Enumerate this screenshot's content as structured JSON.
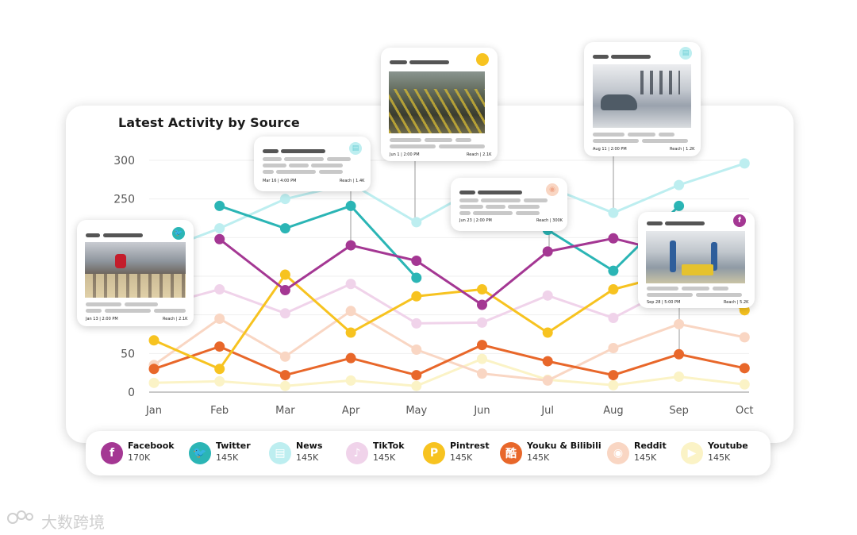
{
  "title": "Latest Activity by Source",
  "chart_data": {
    "type": "line",
    "title": "Latest Activity by Source",
    "categories": [
      "Jan",
      "Feb",
      "Mar",
      "Apr",
      "May",
      "Jun",
      "Jul",
      "Aug",
      "Sep",
      "Oct"
    ],
    "yticks": [
      0,
      50,
      250,
      300
    ],
    "ylim": [
      0,
      300
    ],
    "grid": true,
    "series": [
      {
        "name": "Facebook",
        "color": "#a43793",
        "values": [
          null,
          198,
          132,
          190,
          170,
          113,
          182,
          199,
          178,
          null
        ]
      },
      {
        "name": "Twitter",
        "color": "#2bb5b5",
        "values": [
          null,
          241,
          212,
          241,
          148,
          null,
          210,
          157,
          241,
          null
        ]
      },
      {
        "name": "News",
        "color": "#bdeef0",
        "values": [
          180,
          212,
          250,
          270,
          220,
          267,
          266,
          232,
          268,
          296
        ]
      },
      {
        "name": "TikTok",
        "color": "#f0d3ea",
        "values": [
          110,
          133,
          102,
          140,
          89,
          90,
          125,
          96,
          140,
          null
        ]
      },
      {
        "name": "Pintrest",
        "color": "#f7c320",
        "values": [
          67,
          30,
          152,
          77,
          124,
          133,
          77,
          133,
          155,
          106
        ]
      },
      {
        "name": "Youku & Bilibili",
        "color": "#e8672a",
        "values": [
          30,
          59,
          22,
          44,
          22,
          61,
          40,
          22,
          49,
          31
        ]
      },
      {
        "name": "Reddit",
        "color": "#f9d6c3",
        "values": [
          35,
          95,
          46,
          105,
          55,
          24,
          15,
          57,
          88,
          71
        ]
      },
      {
        "name": "Youtube",
        "color": "#fbf3c6",
        "values": [
          12,
          14,
          8,
          15,
          8,
          43,
          16,
          9,
          20,
          10
        ]
      }
    ]
  },
  "legend": [
    {
      "name": "Facebook",
      "value": "170K",
      "icon": "f",
      "color": "#a43793",
      "icon_name": "facebook-icon"
    },
    {
      "name": "Twitter",
      "value": "145K",
      "icon": "🐦",
      "color": "#2bb5b5",
      "icon_name": "twitter-icon"
    },
    {
      "name": "News",
      "value": "145K",
      "icon": "▤",
      "color": "#bdeef0",
      "icon_name": "news-icon"
    },
    {
      "name": "TikTok",
      "value": "145K",
      "icon": "♪",
      "color": "#f0d3ea",
      "icon_name": "tiktok-icon"
    },
    {
      "name": "Pintrest",
      "value": "145K",
      "icon": "P",
      "color": "#f7c320",
      "icon_name": "pinterest-icon"
    },
    {
      "name": "Youku & Bilibili",
      "value": "145K",
      "icon": "酷",
      "color": "#e8672a",
      "icon_name": "youku-icon"
    },
    {
      "name": "Reddit",
      "value": "145K",
      "icon": "◉",
      "color": "#f9d6c3",
      "icon_name": "reddit-icon"
    },
    {
      "name": "Youtube",
      "value": "145K",
      "icon": "▶",
      "color": "#fbf3c6",
      "icon_name": "youtube-icon"
    }
  ],
  "cards": [
    {
      "id": "twitter",
      "date": "Jan 13 | 2:00 PM",
      "reach": "Reach | 2.1K",
      "badge": "🐦",
      "badge_color": "#2bb5b5"
    },
    {
      "id": "news-mar",
      "date": "Mar 16 | 4:00 PM",
      "reach": "Reach | 1.4K",
      "badge": "▤",
      "badge_color": "#bdeef0"
    },
    {
      "id": "pintrest",
      "date": "Jun 1 | 2:00 PM",
      "reach": "Reach | 2.1K",
      "badge": "",
      "badge_color": "#f7c320"
    },
    {
      "id": "reddit",
      "date": "Jun 23 | 2:00 PM",
      "reach": "Reach | 300K",
      "badge": "◉",
      "badge_color": "#f9d6c3"
    },
    {
      "id": "news-aug",
      "date": "Aug 11 | 2:00 PM",
      "reach": "Reach | 1.2K",
      "badge": "▤",
      "badge_color": "#bdeef0"
    },
    {
      "id": "facebook",
      "date": "Sep 28 | 5:00 PM",
      "reach": "Reach | 5.2K",
      "badge": "f",
      "badge_color": "#a43793"
    }
  ],
  "watermark": "大数跨境"
}
